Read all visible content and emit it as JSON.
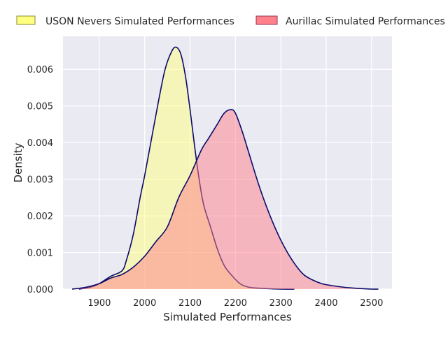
{
  "chart_data": {
    "type": "area",
    "xlabel": "Simulated Performances",
    "ylabel": "Density",
    "xlim": [
      1820,
      2545
    ],
    "ylim": [
      0,
      0.0069
    ],
    "x_ticks": [
      1900,
      2000,
      2100,
      2200,
      2300,
      2400,
      2500
    ],
    "y_ticks": [
      0.0,
      0.001,
      0.002,
      0.003,
      0.004,
      0.005,
      0.006
    ],
    "x_tick_labels": [
      "1900",
      "2000",
      "2100",
      "2200",
      "2300",
      "2400",
      "2500"
    ],
    "y_tick_labels": [
      "0.000",
      "0.001",
      "0.002",
      "0.003",
      "0.004",
      "0.005",
      "0.006"
    ],
    "grid": true,
    "legend_position": "top",
    "series": [
      {
        "name": "USON Nevers Simulated Performances",
        "color": "#ffff80",
        "line_color": "#0a0a6b",
        "x": [
          1855,
          1880,
          1900,
          1925,
          1950,
          1960,
          1975,
          1990,
          2000,
          2015,
          2030,
          2045,
          2060,
          2070,
          2080,
          2090,
          2100,
          2110,
          2120,
          2130,
          2145,
          2160,
          2175,
          2190,
          2210,
          2230,
          2260,
          2300,
          2330
        ],
        "y": [
          0.0,
          5e-05,
          0.00015,
          0.00035,
          0.0005,
          0.0008,
          0.0015,
          0.0025,
          0.0031,
          0.0041,
          0.0051,
          0.006,
          0.0065,
          0.0066,
          0.0064,
          0.0058,
          0.0049,
          0.0039,
          0.003,
          0.0023,
          0.0017,
          0.0011,
          0.00065,
          0.0004,
          0.00015,
          5e-05,
          2e-05,
          0.0,
          0.0
        ]
      },
      {
        "name": "Aurillac Simulated Performances",
        "color": "#ff808a",
        "line_color": "#0a0a6b",
        "x": [
          1840,
          1870,
          1900,
          1925,
          1950,
          1975,
          2000,
          2025,
          2050,
          2075,
          2100,
          2125,
          2140,
          2160,
          2175,
          2190,
          2200,
          2215,
          2230,
          2250,
          2270,
          2290,
          2310,
          2330,
          2350,
          2370,
          2390,
          2410,
          2440,
          2470,
          2500,
          2515
        ],
        "y": [
          0.0,
          5e-05,
          0.00015,
          0.0003,
          0.0004,
          0.0006,
          0.0009,
          0.0013,
          0.0017,
          0.0025,
          0.0031,
          0.0038,
          0.0041,
          0.0045,
          0.0048,
          0.0049,
          0.0048,
          0.0043,
          0.0037,
          0.0029,
          0.0022,
          0.0016,
          0.0011,
          0.0007,
          0.0004,
          0.00025,
          0.00015,
          0.0001,
          5e-05,
          2e-05,
          0.0,
          0.0
        ]
      }
    ]
  }
}
